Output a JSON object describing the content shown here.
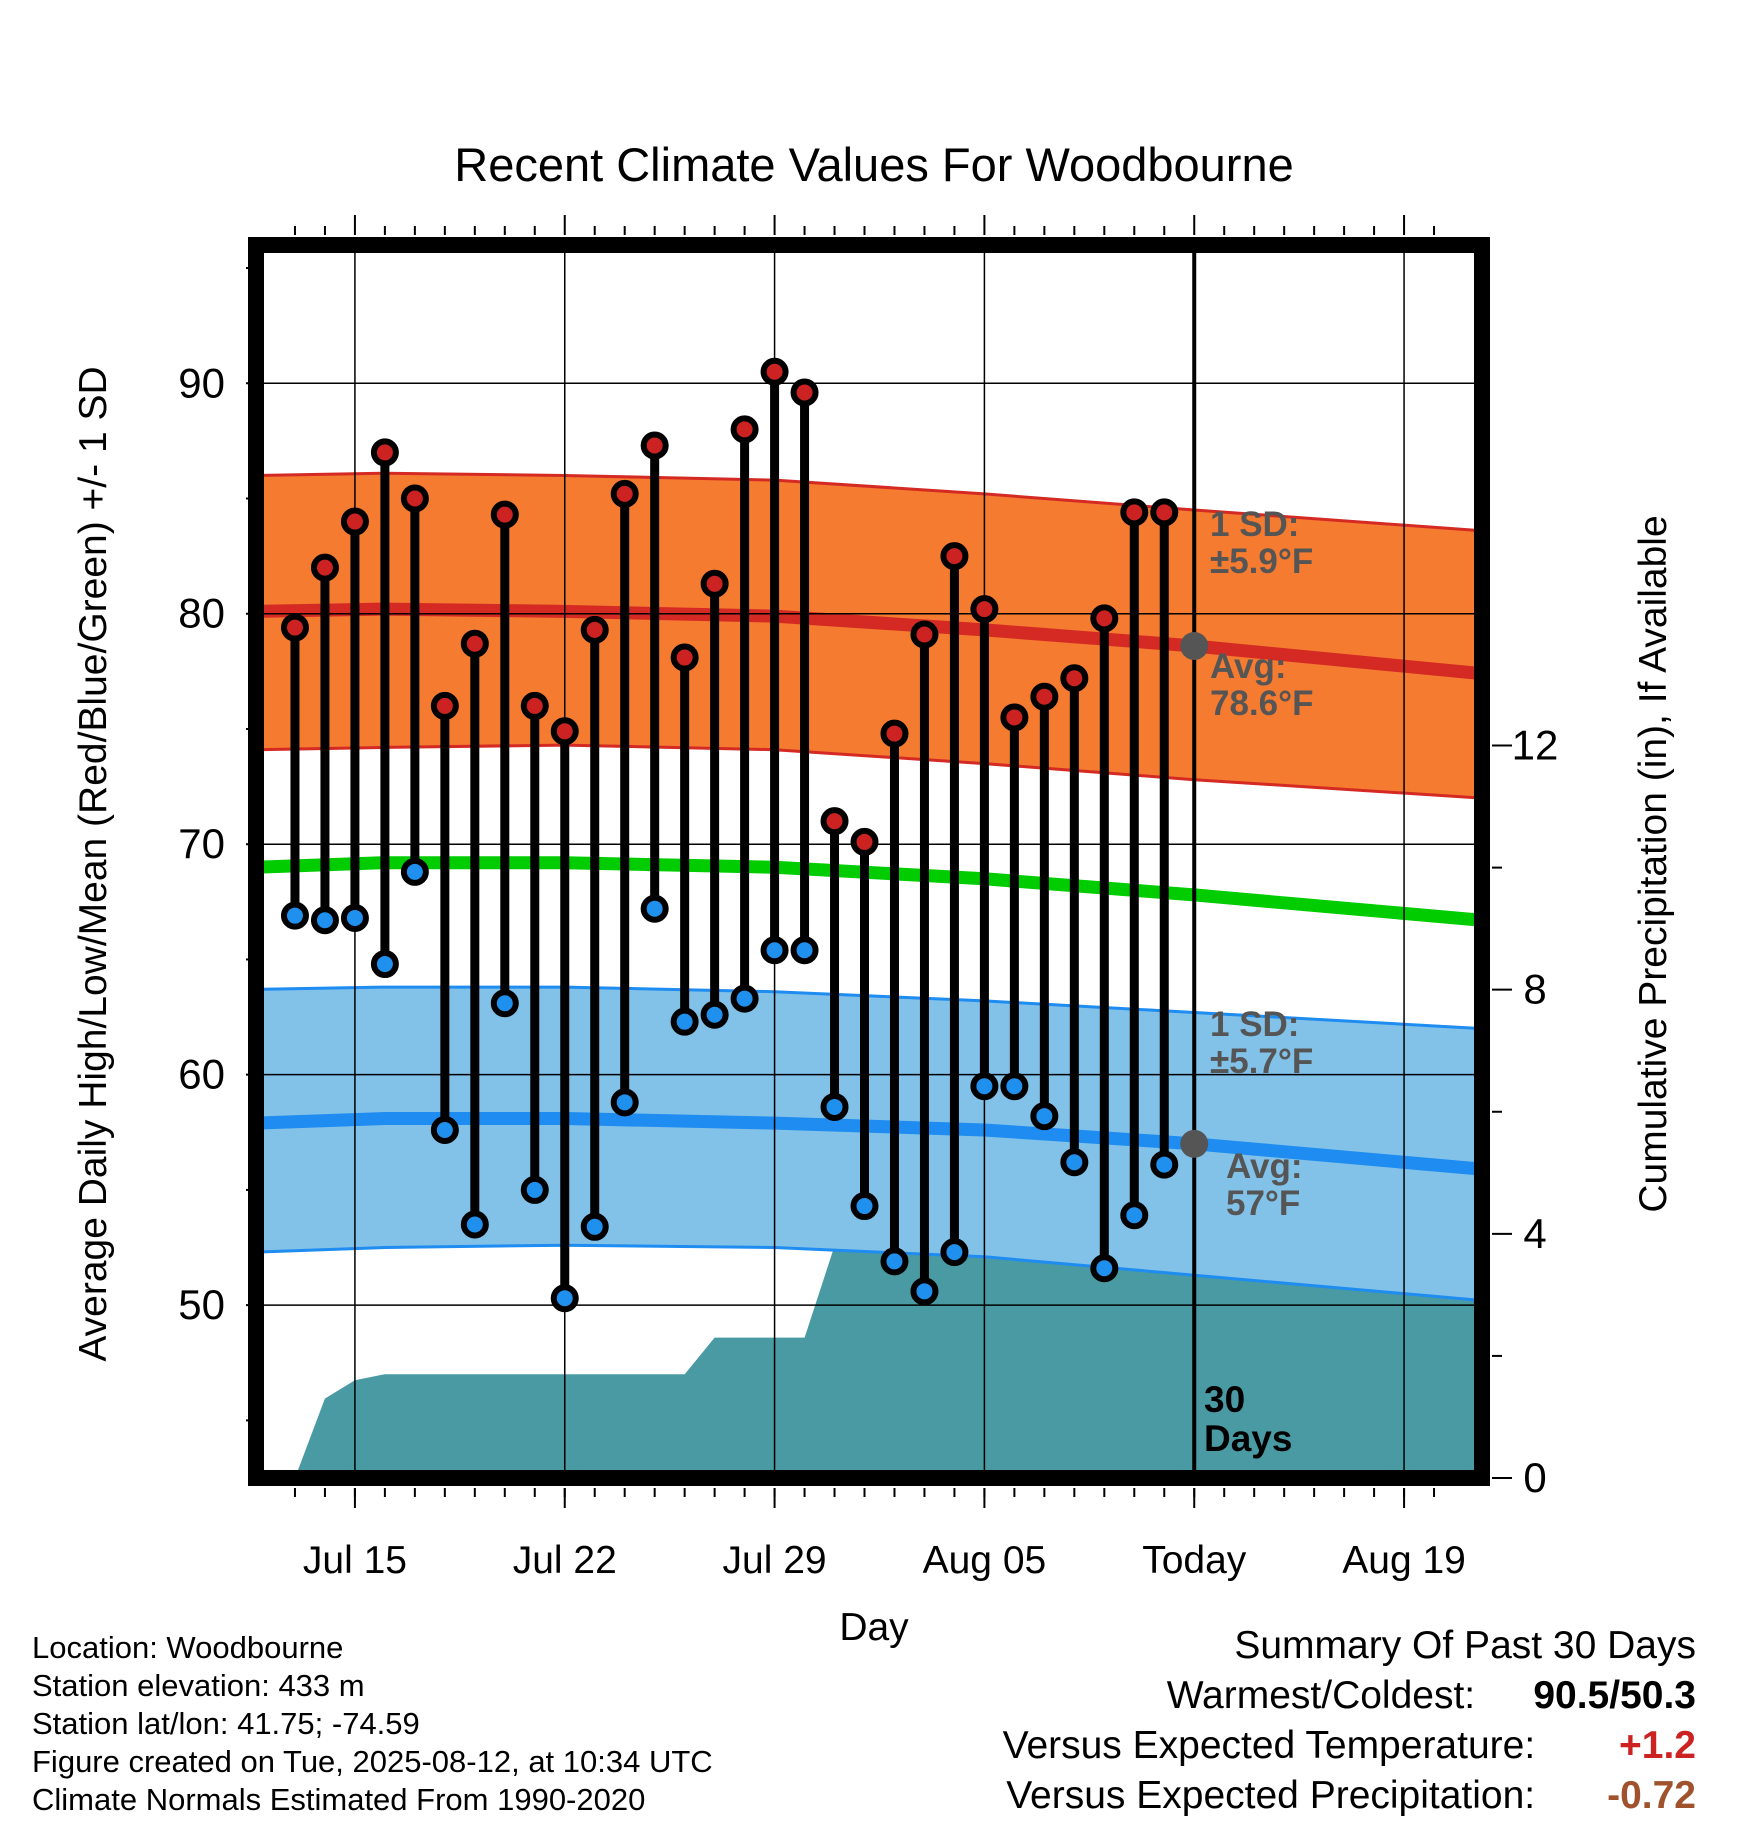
{
  "chart_data": {
    "type": "line",
    "title": "Recent Climate Values For Woodbourne",
    "xlabel": "Day",
    "ylabel": "Average Daily High/Low/Mean (Red/Blue/Green) +/- 1 SD",
    "y2label": "Cumulative Precipitation (in), If Available",
    "ylim": [
      42.5,
      96
    ],
    "y_ticks": [
      50,
      60,
      70,
      80,
      90
    ],
    "y2lim": [
      0,
      20.2
    ],
    "y2_ticks": [
      0,
      4,
      8,
      12
    ],
    "x_ticks": [
      {
        "day": 15,
        "label": "Jul 15"
      },
      {
        "day": 22,
        "label": "Jul 22"
      },
      {
        "day": 29,
        "label": "Jul 29"
      },
      {
        "day": 36,
        "label": "Aug 05"
      },
      {
        "day": 43,
        "label": "Today"
      },
      {
        "day": 50,
        "label": "Aug 19"
      }
    ],
    "xlim": [
      11.7,
      52.6
    ],
    "today_day": 43,
    "observed": {
      "days": [
        13,
        14,
        15,
        16,
        17,
        18,
        19,
        20,
        21,
        22,
        23,
        24,
        25,
        26,
        27,
        28,
        29,
        30,
        31,
        32,
        33,
        34,
        35,
        36,
        37,
        38,
        39,
        40,
        41,
        42
      ],
      "highs": [
        79.4,
        82.0,
        84.0,
        87.0,
        85.0,
        76.0,
        78.7,
        84.3,
        76.0,
        74.9,
        79.3,
        85.2,
        87.3,
        78.1,
        81.3,
        88.0,
        90.5,
        89.6,
        71.0,
        70.1,
        74.8,
        79.1,
        82.5,
        80.2,
        75.5,
        76.4,
        77.2,
        79.8,
        84.4,
        84.4
      ],
      "lows": [
        66.9,
        66.7,
        66.8,
        64.8,
        68.8,
        57.6,
        53.5,
        63.1,
        55.0,
        50.3,
        53.4,
        58.8,
        67.2,
        62.3,
        62.6,
        63.3,
        65.4,
        65.4,
        58.6,
        54.3,
        51.9,
        50.6,
        52.3,
        59.5,
        59.5,
        58.2,
        56.2,
        51.6,
        53.9,
        56.1
      ]
    },
    "normals": {
      "days": [
        11.7,
        16,
        22,
        29,
        36,
        43,
        52.6
      ],
      "high_mean": [
        80.1,
        80.2,
        80.1,
        79.9,
        79.3,
        78.6,
        77.4
      ],
      "high_upper": [
        86.0,
        86.1,
        86.0,
        85.8,
        85.2,
        84.5,
        83.6
      ],
      "high_lower": [
        74.1,
        74.2,
        74.3,
        74.1,
        73.5,
        72.8,
        72.0
      ],
      "mean": [
        69.0,
        69.2,
        69.2,
        69.0,
        68.5,
        67.8,
        66.7
      ],
      "low_mean": [
        57.9,
        58.1,
        58.1,
        57.9,
        57.6,
        57.0,
        55.9
      ],
      "low_upper": [
        63.7,
        63.8,
        63.8,
        63.6,
        63.2,
        62.7,
        62.0
      ],
      "low_lower": [
        52.3,
        52.5,
        52.6,
        52.5,
        52.1,
        51.3,
        50.2
      ]
    },
    "precipitation": {
      "days": [
        13,
        14,
        15,
        16,
        18,
        19,
        20,
        21,
        22,
        23,
        24,
        25,
        26,
        27,
        28,
        29,
        30,
        31,
        31.5,
        32,
        33,
        34,
        35,
        36,
        37,
        38,
        39,
        40,
        41,
        42,
        43,
        52.6
      ],
      "cumulative": [
        0.0,
        1.3,
        1.6,
        1.7,
        1.7,
        1.7,
        1.7,
        1.7,
        1.7,
        1.7,
        1.7,
        1.7,
        1.7,
        2.3,
        2.3,
        2.3,
        2.3,
        3.8,
        3.9,
        3.9,
        3.9,
        3.9,
        3.9,
        3.9,
        3.9,
        3.9,
        3.9,
        3.9,
        3.9,
        3.9,
        3.9,
        3.9
      ]
    },
    "annotations": {
      "high_sd": [
        "1 SD:",
        "±5.9°F"
      ],
      "high_avg": [
        "Avg:",
        "78.6°F"
      ],
      "low_sd": [
        "1 SD:",
        "±5.7°F"
      ],
      "low_avg": [
        "Avg:",
        "57°F"
      ],
      "window": [
        "30",
        "Days"
      ]
    },
    "today_high_avg": 78.6,
    "today_low_avg": 57.0,
    "colors": {
      "high_band": "#f47b30",
      "high_line": "#d42a23",
      "high_band_edge": "#d42a23",
      "low_band": "#82c1e8",
      "low_line": "#1e8cf0",
      "low_band_edge": "#1e8cf0",
      "mean_line": "#00cc00",
      "precip": "#4a9aa4",
      "high_marker": "#cc2222",
      "low_marker": "#2090ee",
      "today_marker": "#555555",
      "annotation_text": "#555555",
      "warm_anomaly": "#cc2222",
      "precip_anomaly": "#a0522d"
    }
  },
  "meta": {
    "location": "Location: Woodbourne",
    "elevation": "Station elevation: 433 m",
    "latlon": "Station lat/lon: 41.75; -74.59",
    "created": "Figure created on Tue, 2025-08-12, at 10:34 UTC",
    "normals": "Climate Normals Estimated From 1990-2020"
  },
  "summary": {
    "title": "Summary Of Past 30 Days",
    "warm_cold_label": "Warmest/Coldest:",
    "warm_cold_value": "90.5/50.3",
    "temp_label": "Versus Expected Temperature:",
    "temp_value": "+1.2",
    "precip_label": "Versus Expected Precipitation:",
    "precip_value": "-0.72"
  }
}
